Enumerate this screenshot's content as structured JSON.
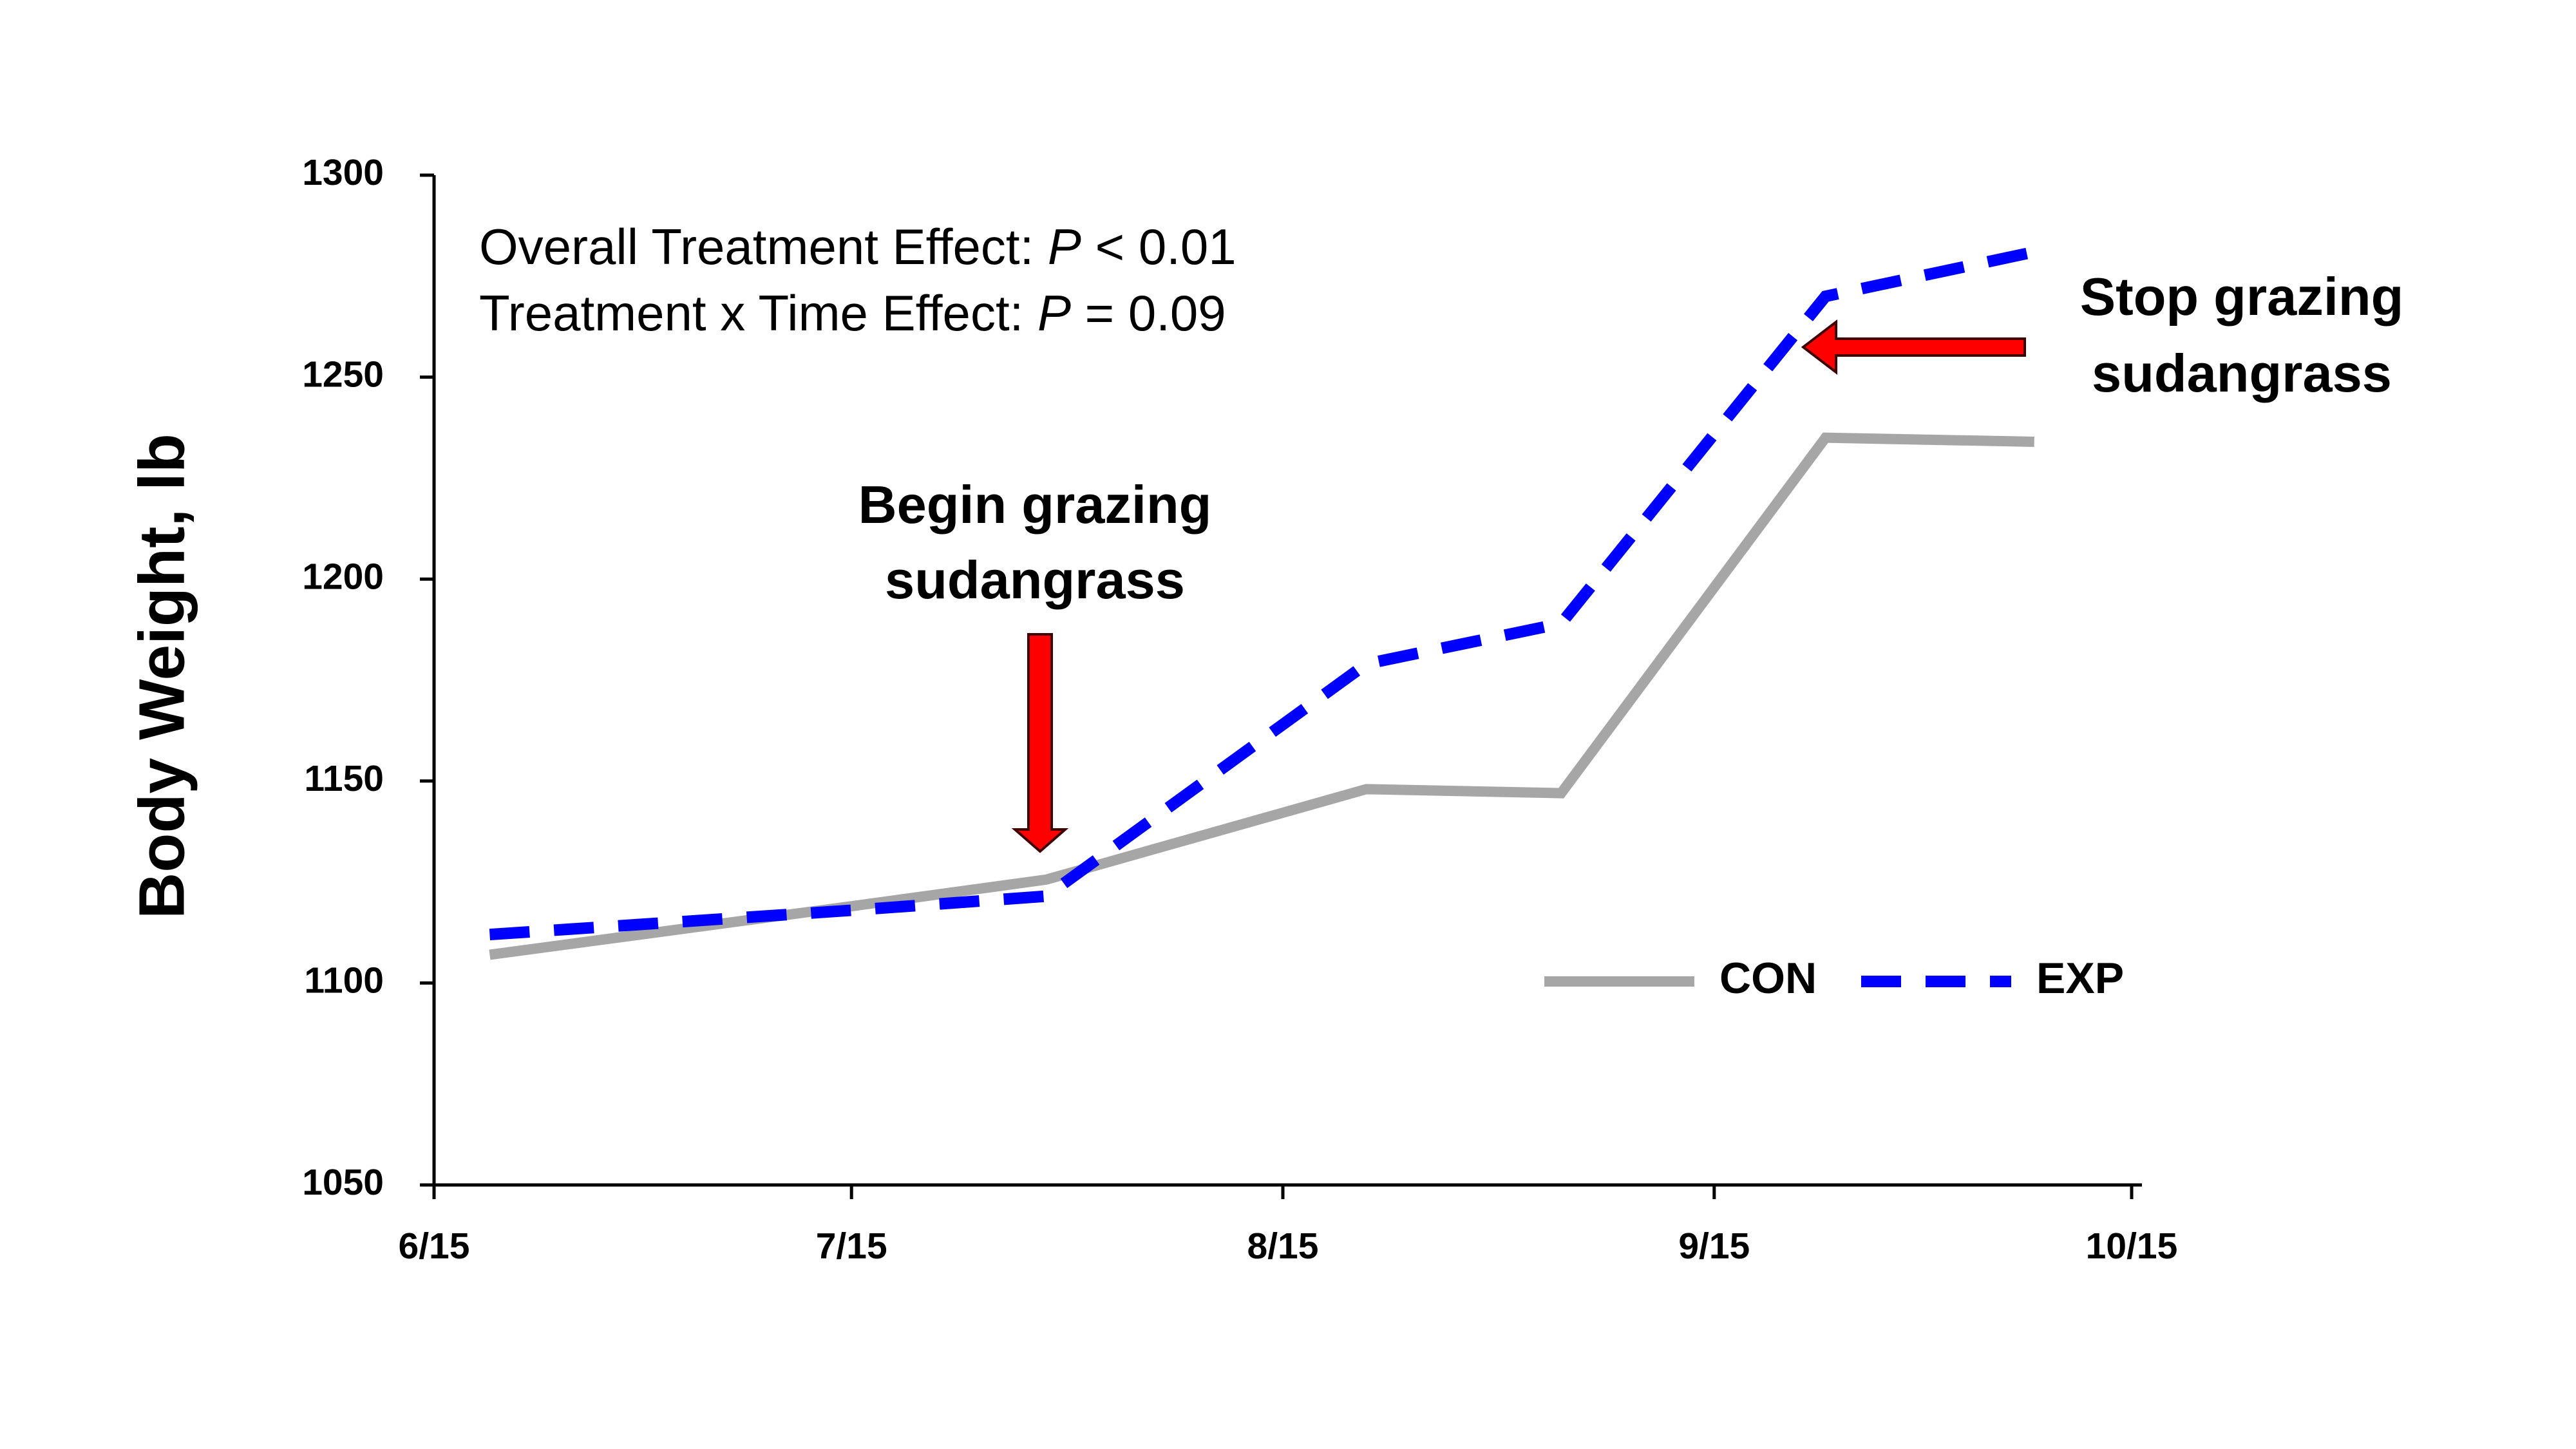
{
  "chart_data": {
    "type": "line",
    "y_label": "Body Weight, lb",
    "x": [
      "6/19",
      "7/15",
      "7/29",
      "8/21",
      "9/4",
      "9/23",
      "10/8"
    ],
    "series": [
      {
        "name": "CON",
        "color": "#a6a6a6",
        "style": "solid",
        "values": [
          1107,
          1119,
          1125.6,
          1148,
          1147,
          1235,
          1234
        ]
      },
      {
        "name": "EXP",
        "color": "#0000ff",
        "style": "dashed",
        "values": [
          1112,
          1118,
          1121.5,
          1179,
          1189,
          1270,
          1281
        ]
      }
    ],
    "xlim": [
      "6/15",
      "10/15"
    ],
    "xticks": [
      "6/15",
      "7/15",
      "8/15",
      "9/15",
      "10/15"
    ],
    "ylim": [
      1050,
      1300
    ],
    "yticks": [
      1050,
      1100,
      1150,
      1200,
      1250,
      1300
    ],
    "grid": false,
    "statistics": [
      {
        "label": "Overall Treatment Effect: ",
        "symbol": "P",
        "relation": " < 0.01"
      },
      {
        "label": "Treatment x Time Effect: ",
        "symbol": "P",
        "relation": " = 0.09"
      }
    ],
    "annotations": [
      {
        "lines": [
          "Begin grazing",
          "sudangrass"
        ]
      },
      {
        "lines": [
          "Stop grazing",
          "sudangrass"
        ]
      }
    ]
  }
}
